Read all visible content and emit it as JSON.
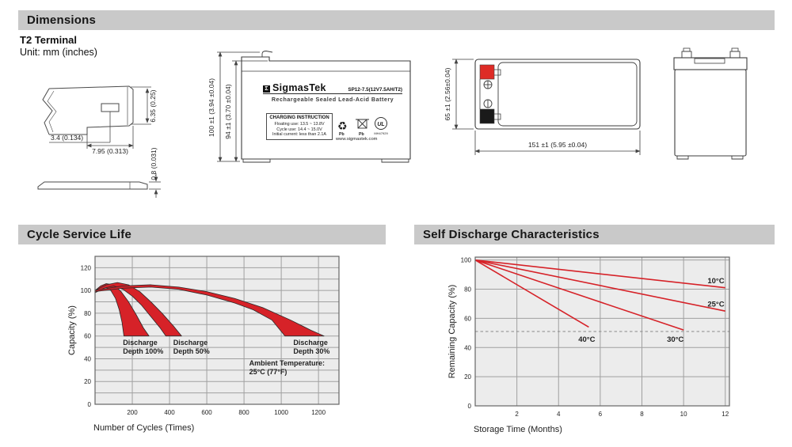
{
  "sections": {
    "dimensions": {
      "title": "Dimensions",
      "subtitle": "T2 Terminal",
      "unit": "Unit: mm (inches)"
    },
    "cycle": {
      "title": "Cycle Service Life"
    },
    "self_discharge": {
      "title": "Self Discharge Characteristics"
    }
  },
  "terminal_drawing": {
    "dim_hole_offset": "3.4 (0.134)",
    "dim_width": "7.95 (0.313)",
    "dim_height": "6.35 (0.25)",
    "dim_thickness": "0.8 (0.031)"
  },
  "front_view": {
    "dim_height_outer": "100 ±1 (3.94 ±0.04)",
    "dim_height_inner": "94 ±1 (3.70 ±0.04)",
    "label": {
      "sigma": "Σ",
      "brand": "SigmasTek",
      "model": "SP12-7.5(12V7.5AH/T2)",
      "subtitle": "Rechargeable Sealed Lead-Acid Battery",
      "charging_title": "CHARGING INSTRUCTION",
      "charging_lines": [
        "Floating use: 13.5 ~ 13.8V",
        "Cycle use: 14.4 ~ 15.0V",
        "Initial current: less than 2.1A"
      ],
      "pb_recycle": "Pb",
      "pb_bin": "Pb",
      "ul_letters": "UL",
      "ul_code": "MH47929",
      "website": "www.sigmastek.com"
    }
  },
  "top_view": {
    "dim_height": "65 ±1 (2.56±0.04)",
    "dim_width": "151 ±1 (5.95 ±0.04)"
  },
  "colors": {
    "accent_red": "#d62228",
    "plot_bg": "#ececec",
    "grid": "#a0a0a0",
    "header_bar": "#c9c9c9"
  },
  "chart_data": [
    {
      "type": "area",
      "title": "Cycle Service Life",
      "xlabel": "Number of Cycles (Times)",
      "ylabel": "Capacity (%)",
      "xlim": [
        0,
        1310
      ],
      "ylim": [
        0,
        130
      ],
      "xticks": [
        200,
        400,
        600,
        800,
        1000,
        1200
      ],
      "yticks": [
        0,
        20,
        40,
        60,
        80,
        100,
        120
      ],
      "ygrid_step": 10,
      "grid": true,
      "legend_position": "none",
      "bands": [
        {
          "name": "Discharge Depth 100%",
          "upper": [
            [
              0,
              100
            ],
            [
              30,
              104
            ],
            [
              60,
              106
            ],
            [
              100,
              105
            ],
            [
              140,
              99
            ],
            [
              180,
              90
            ],
            [
              220,
              79
            ],
            [
              260,
              67
            ],
            [
              290,
              60
            ]
          ],
          "lower": [
            [
              0,
              98
            ],
            [
              25,
              101
            ],
            [
              55,
              103
            ],
            [
              85,
              100
            ],
            [
              110,
              93
            ],
            [
              130,
              83
            ],
            [
              145,
              72
            ],
            [
              155,
              60
            ]
          ]
        },
        {
          "name": "Discharge Depth 50%",
          "upper": [
            [
              0,
              100
            ],
            [
              60,
              105
            ],
            [
              120,
              107
            ],
            [
              180,
              105
            ],
            [
              240,
              99
            ],
            [
              300,
              90
            ],
            [
              360,
              80
            ],
            [
              420,
              69
            ],
            [
              465,
              60
            ]
          ],
          "lower": [
            [
              0,
              98
            ],
            [
              50,
              102
            ],
            [
              100,
              104
            ],
            [
              150,
              101
            ],
            [
              200,
              95
            ],
            [
              250,
              87
            ],
            [
              300,
              77
            ],
            [
              350,
              67
            ],
            [
              380,
              60
            ]
          ]
        },
        {
          "name": "Discharge Depth 30%",
          "upper": [
            [
              0,
              100
            ],
            [
              150,
              104
            ],
            [
              300,
              105
            ],
            [
              450,
              103
            ],
            [
              600,
              99
            ],
            [
              750,
              93
            ],
            [
              900,
              85
            ],
            [
              1050,
              74
            ],
            [
              1160,
              65
            ],
            [
              1230,
              60
            ]
          ],
          "lower": [
            [
              0,
              99
            ],
            [
              150,
              102
            ],
            [
              300,
              103
            ],
            [
              450,
              101
            ],
            [
              600,
              96
            ],
            [
              750,
              89
            ],
            [
              850,
              83
            ],
            [
              950,
              74
            ],
            [
              1020,
              60
            ]
          ]
        }
      ],
      "annotations": [
        {
          "x": 150,
          "y": 52,
          "lines": [
            "Discharge",
            "Depth 100%"
          ]
        },
        {
          "x": 420,
          "y": 52,
          "lines": [
            "Discharge",
            "Depth 50%"
          ]
        },
        {
          "x": 1065,
          "y": 52,
          "lines": [
            "Discharge",
            "Depth 30%"
          ]
        },
        {
          "x": 828,
          "y": 34,
          "lines": [
            "Ambient Temperature:",
            "25°C (77°F)"
          ]
        }
      ]
    },
    {
      "type": "line",
      "title": "Self Discharge Characteristics",
      "xlabel": "Storage Time (Months)",
      "ylabel": "Remaining Capacity (%)",
      "xlim": [
        0,
        12.2
      ],
      "ylim": [
        0,
        102
      ],
      "xticks": [
        2,
        4,
        6,
        8,
        10,
        12
      ],
      "yticks": [
        0,
        20,
        40,
        60,
        80,
        100
      ],
      "ygrid_step": 20,
      "grid": true,
      "dashed_y": 51,
      "legend_position": "inline-labels",
      "series": [
        {
          "name": "40°C",
          "points": [
            [
              0,
              100
            ],
            [
              5.45,
              54
            ]
          ],
          "label_x": 4.95,
          "label_y": 44
        },
        {
          "name": "30°C",
          "points": [
            [
              0,
              100
            ],
            [
              10.0,
              52
            ]
          ],
          "label_x": 9.2,
          "label_y": 44
        },
        {
          "name": "25°C",
          "points": [
            [
              0,
              100
            ],
            [
              12,
              65
            ]
          ],
          "label_x": 11.15,
          "label_y": 68
        },
        {
          "name": "10°C",
          "points": [
            [
              0,
              100
            ],
            [
              12,
              81
            ]
          ],
          "label_x": 11.15,
          "label_y": 84
        }
      ]
    }
  ]
}
